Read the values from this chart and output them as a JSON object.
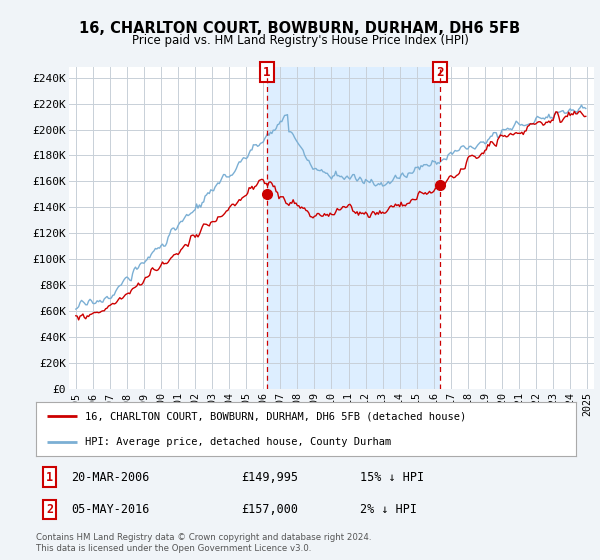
{
  "title": "16, CHARLTON COURT, BOWBURN, DURHAM, DH6 5FB",
  "subtitle": "Price paid vs. HM Land Registry's House Price Index (HPI)",
  "ylabel_ticks": [
    "£0",
    "£20K",
    "£40K",
    "£60K",
    "£80K",
    "£100K",
    "£120K",
    "£140K",
    "£160K",
    "£180K",
    "£200K",
    "£220K",
    "£240K"
  ],
  "ytick_vals": [
    0,
    20000,
    40000,
    60000,
    80000,
    100000,
    120000,
    140000,
    160000,
    180000,
    200000,
    220000,
    240000
  ],
  "ylim": [
    0,
    248000
  ],
  "sale1_date": "20-MAR-2006",
  "sale1_price": 149995,
  "sale1_hpi_diff": "15% ↓ HPI",
  "sale2_date": "05-MAY-2016",
  "sale2_price": 157000,
  "sale2_hpi_diff": "2% ↓ HPI",
  "legend1": "16, CHARLTON COURT, BOWBURN, DURHAM, DH6 5FB (detached house)",
  "legend2": "HPI: Average price, detached house, County Durham",
  "footnote": "Contains HM Land Registry data © Crown copyright and database right 2024.\nThis data is licensed under the Open Government Licence v3.0.",
  "house_color": "#cc0000",
  "hpi_color": "#7bafd4",
  "shade_color": "#ddeeff",
  "background_color": "#f0f4f8",
  "plot_bg_color": "#ffffff",
  "grid_color": "#c8d0d8"
}
